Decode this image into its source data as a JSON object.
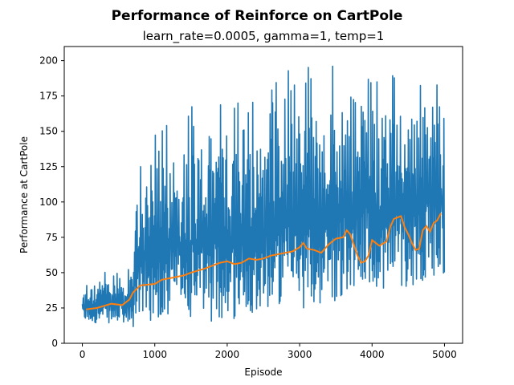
{
  "chart_data": {
    "type": "line",
    "title": "Performance of Reinforce on CartPole",
    "subtitle": "learn_rate=0.0005, gamma=1, temp=1",
    "xlabel": "Episode",
    "ylabel": "Performance at CartPole",
    "xlim": [
      -250,
      5250
    ],
    "ylim": [
      0,
      210
    ],
    "xticks": [
      0,
      1000,
      2000,
      3000,
      4000,
      5000
    ],
    "yticks": [
      0,
      25,
      50,
      75,
      100,
      125,
      150,
      175,
      200
    ],
    "grid": false,
    "legend": "none",
    "series": [
      {
        "kind": "raw",
        "color": "#1f77b4",
        "x_range": [
          0,
          5000
        ],
        "envelope": {
          "x": [
            0,
            250,
            500,
            700,
            750,
            1000,
            1250,
            1500,
            1750,
            2000,
            2250,
            2500,
            2750,
            3000,
            3250,
            3500,
            3600,
            3750,
            3850,
            4000,
            4250,
            4500,
            4750,
            5000
          ],
          "low": [
            16,
            14,
            15,
            10,
            20,
            15,
            20,
            18,
            15,
            15,
            20,
            25,
            25,
            25,
            25,
            30,
            35,
            40,
            45,
            35,
            40,
            40,
            45,
            50
          ],
          "high": [
            40,
            52,
            50,
            57,
            125,
            150,
            165,
            170,
            180,
            183,
            170,
            175,
            190,
            200,
            195,
            200,
            198,
            190,
            200,
            200,
            200,
            200,
            200,
            200
          ]
        }
      },
      {
        "kind": "moving_average",
        "color": "#ff7f0e",
        "x": [
          50,
          200,
          400,
          550,
          650,
          700,
          800,
          1000,
          1100,
          1200,
          1400,
          1500,
          1700,
          1800,
          1900,
          2000,
          2100,
          2200,
          2300,
          2400,
          2500,
          2600,
          2700,
          2800,
          2900,
          3000,
          3050,
          3100,
          3200,
          3300,
          3400,
          3500,
          3600,
          3650,
          3700,
          3800,
          3850,
          3900,
          3950,
          4000,
          4100,
          4200,
          4250,
          4300,
          4350,
          4400,
          4450,
          4500,
          4550,
          4600,
          4650,
          4700,
          4750,
          4800,
          4850,
          4900,
          4950
        ],
        "y": [
          24,
          25,
          28,
          27,
          31,
          36,
          41,
          42,
          45,
          46,
          48,
          50,
          53,
          55,
          57,
          58,
          56,
          57,
          60,
          59,
          60,
          62,
          63,
          64,
          65,
          68,
          71,
          67,
          66,
          64,
          70,
          74,
          75,
          80,
          77,
          62,
          57,
          58,
          62,
          73,
          69,
          72,
          82,
          88,
          89,
          90,
          82,
          77,
          71,
          66,
          67,
          80,
          83,
          79,
          85,
          87,
          92
        ]
      }
    ]
  }
}
